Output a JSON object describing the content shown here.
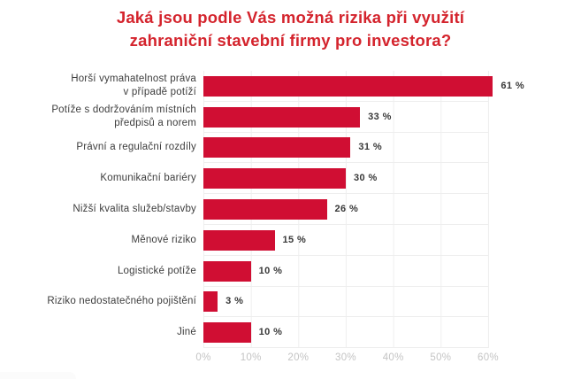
{
  "title": {
    "lines": [
      "Jaká jsou podle Vás možná rizika při využití",
      "zahraniční stavební firmy pro investora?"
    ],
    "color": "#d4242d"
  },
  "chart_data": {
    "type": "bar",
    "orientation": "horizontal",
    "title": "Jaká jsou podle Vás možná rizika při využití zahraniční stavební firmy pro investora?",
    "categories": [
      "Horší vymahatelnost práva\nv případě potíží",
      "Potíže s dodržováním místních\npředpisů a norem",
      "Právní a regulační rozdíly",
      "Komunikační bariéry",
      "Nižší kvalita služeb/stavby",
      "Měnové riziko",
      "Logistické potíže",
      "Riziko nedostatečného pojištění",
      "Jiné"
    ],
    "values": [
      61,
      33,
      31,
      30,
      26,
      15,
      10,
      3,
      10
    ],
    "value_labels": [
      "61 %",
      "33 %",
      "31 %",
      "30 %",
      "26 %",
      "15 %",
      "10 %",
      "3 %",
      "10 %"
    ],
    "xlabel": "",
    "ylabel": "",
    "xlim": [
      0,
      60
    ],
    "x_ticks": [
      "0%",
      "10%",
      "20%",
      "30%",
      "40%",
      "50%",
      "60%"
    ],
    "grid": true,
    "legend": false,
    "bar_color": "#d00e33",
    "category_label_color": "#3d3d3d",
    "value_label_color": "#383838",
    "tick_label_color": "#c4c4c4",
    "grid_color": "#efefef"
  }
}
